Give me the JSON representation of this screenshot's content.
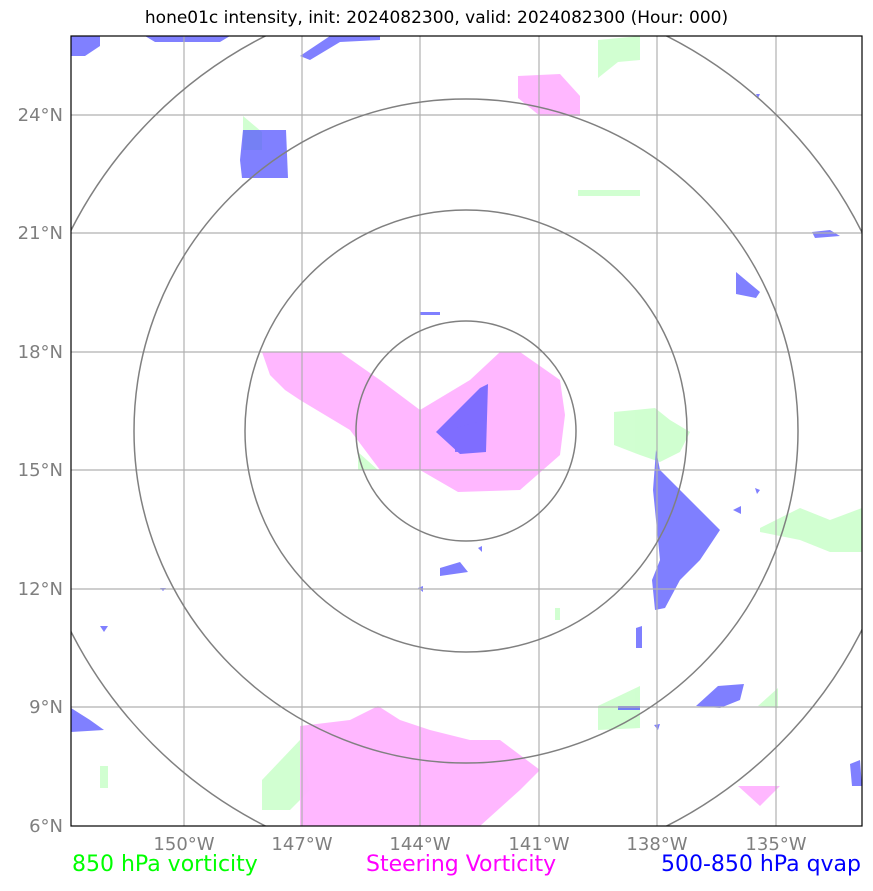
{
  "title": "hone01c intensity, init: 2024082300, valid: 2024082300 (Hour: 000)",
  "axes": {
    "lon_labels": [
      "150°W",
      "147°W",
      "144°W",
      "141°W",
      "138°W",
      "135°W"
    ],
    "lat_labels": [
      "24°N",
      "21°N",
      "18°N",
      "15°N",
      "12°N",
      "9°N",
      "6°N"
    ],
    "lon_values": [
      -150,
      -147,
      -144,
      -141,
      -138,
      -135
    ],
    "lat_values": [
      24,
      21,
      18,
      15,
      12,
      9,
      6
    ],
    "lon_range": [
      -152.8,
      -132.8
    ],
    "lat_range": [
      6,
      26
    ]
  },
  "legend": {
    "vort850": {
      "label": "850 hPa vorticity",
      "color": "#00ff00"
    },
    "steering": {
      "label": "Steering Vorticity",
      "color": "#ff00ff"
    },
    "qvap": {
      "label": "500-850 hPa qvap",
      "color": "#0000ff"
    }
  },
  "range_rings_center": {
    "lon": -142.8,
    "lat": 16.1
  },
  "colors": {
    "vort850_fill": "#ccffcc",
    "steering_fill": "#ffaaff",
    "qvap_fill": "#5555ff",
    "grid": "#b0b0b0",
    "rings": "#808080"
  }
}
